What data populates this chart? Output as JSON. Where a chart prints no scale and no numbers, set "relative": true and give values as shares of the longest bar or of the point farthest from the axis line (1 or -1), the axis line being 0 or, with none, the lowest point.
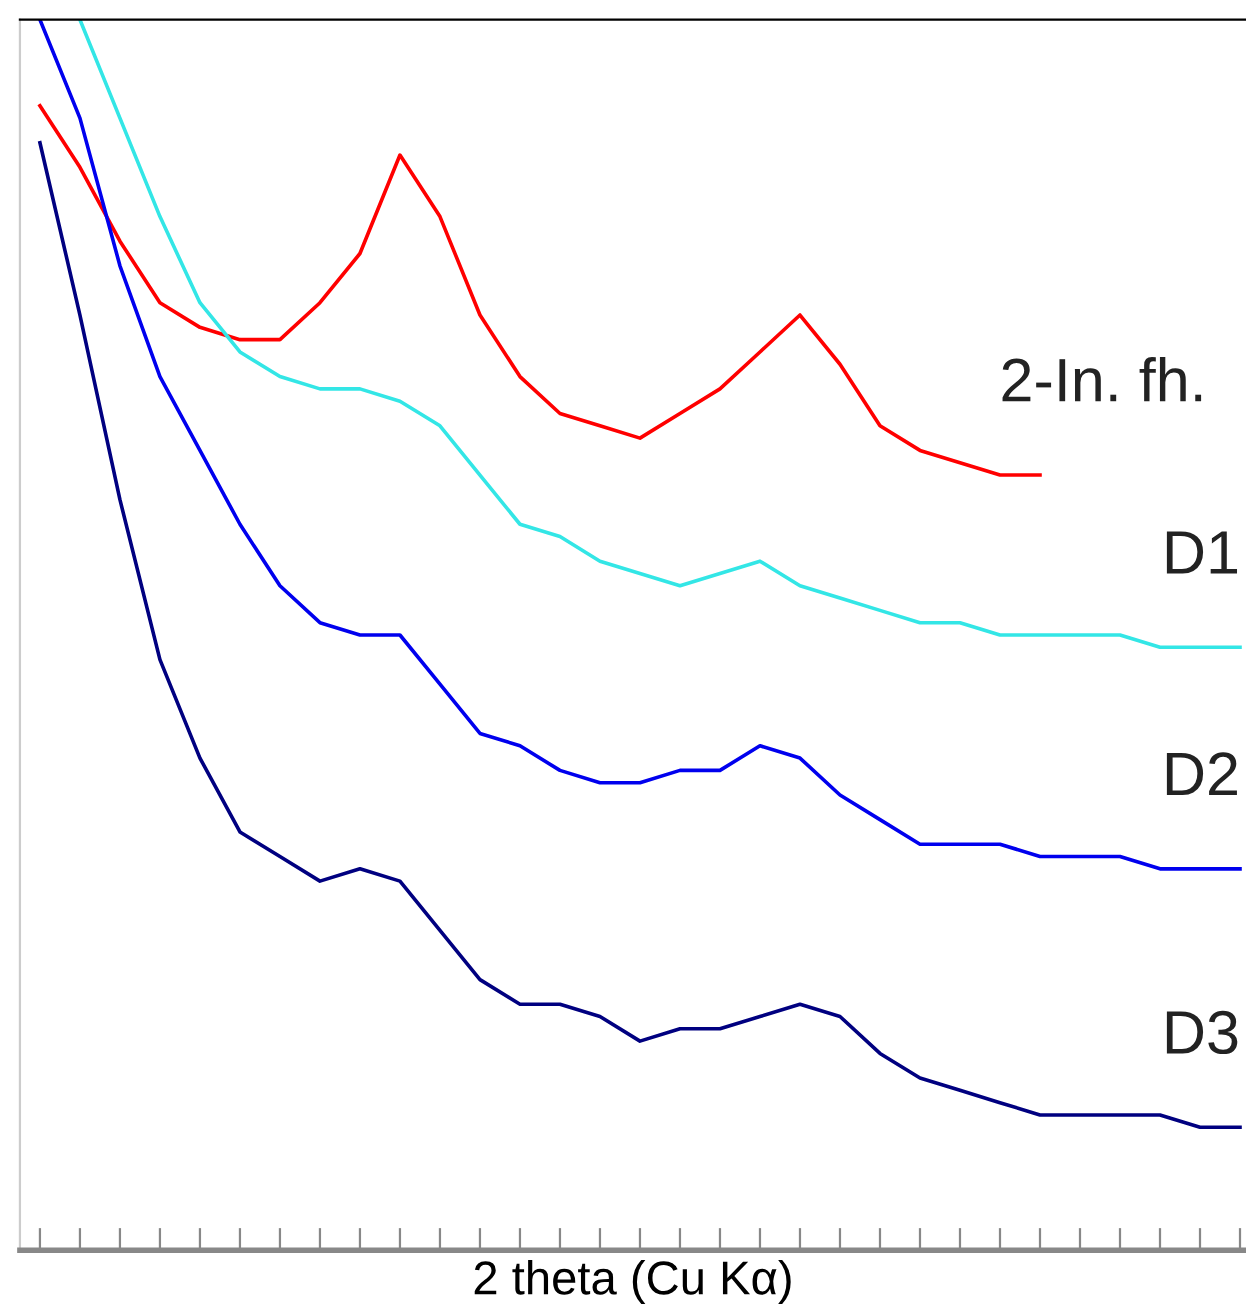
{
  "chart_data": {
    "type": "line",
    "relative": true,
    "xlabel": "2 theta (Cu Kα)",
    "categories": [
      null,
      null,
      null,
      null,
      null,
      null,
      null,
      null,
      null,
      null,
      null,
      null,
      null,
      null,
      null,
      null,
      null,
      null,
      null,
      null,
      null,
      null,
      null,
      null,
      null,
      null,
      null,
      null,
      null,
      null,
      null
    ],
    "series": [
      {
        "name": "2-In. fh.",
        "color": "#ff0000",
        "values": [
          0.93,
          0.88,
          0.82,
          0.77,
          0.75,
          0.74,
          0.74,
          0.77,
          0.81,
          0.89,
          0.84,
          0.76,
          0.71,
          0.68,
          0.67,
          0.66,
          0.68,
          0.7,
          0.73,
          0.76,
          0.72,
          0.67,
          0.65,
          0.64,
          0.63,
          0.63,
          null,
          null,
          null,
          null,
          null
        ]
      },
      {
        "name": "D1",
        "color": "#33e6e6",
        "values": [
          null,
          1.0,
          0.92,
          0.84,
          0.77,
          0.73,
          0.71,
          0.7,
          0.7,
          0.69,
          0.67,
          0.63,
          0.59,
          0.58,
          0.56,
          0.55,
          0.54,
          0.55,
          0.56,
          0.54,
          0.53,
          0.52,
          0.51,
          0.51,
          0.5,
          0.5,
          0.5,
          0.5,
          0.49,
          0.49,
          0.49
        ]
      },
      {
        "name": "D2",
        "color": "#0000ee",
        "values": [
          1.0,
          0.92,
          0.8,
          0.71,
          0.65,
          0.59,
          0.54,
          0.51,
          0.5,
          0.5,
          0.46,
          0.42,
          0.41,
          0.39,
          0.38,
          0.38,
          0.39,
          0.39,
          0.41,
          0.4,
          0.37,
          0.35,
          0.33,
          0.33,
          0.33,
          0.32,
          0.32,
          0.32,
          0.31,
          0.31,
          0.31
        ]
      },
      {
        "name": "D3",
        "color": "#000080",
        "values": [
          0.9,
          0.76,
          0.61,
          0.48,
          0.4,
          0.34,
          0.32,
          0.3,
          0.31,
          0.3,
          0.26,
          0.22,
          0.2,
          0.2,
          0.19,
          0.17,
          0.18,
          0.18,
          0.19,
          0.2,
          0.19,
          0.16,
          0.14,
          0.13,
          0.12,
          0.11,
          0.11,
          0.11,
          0.11,
          0.1,
          0.1
        ]
      }
    ],
    "legend": false,
    "grid": false
  }
}
